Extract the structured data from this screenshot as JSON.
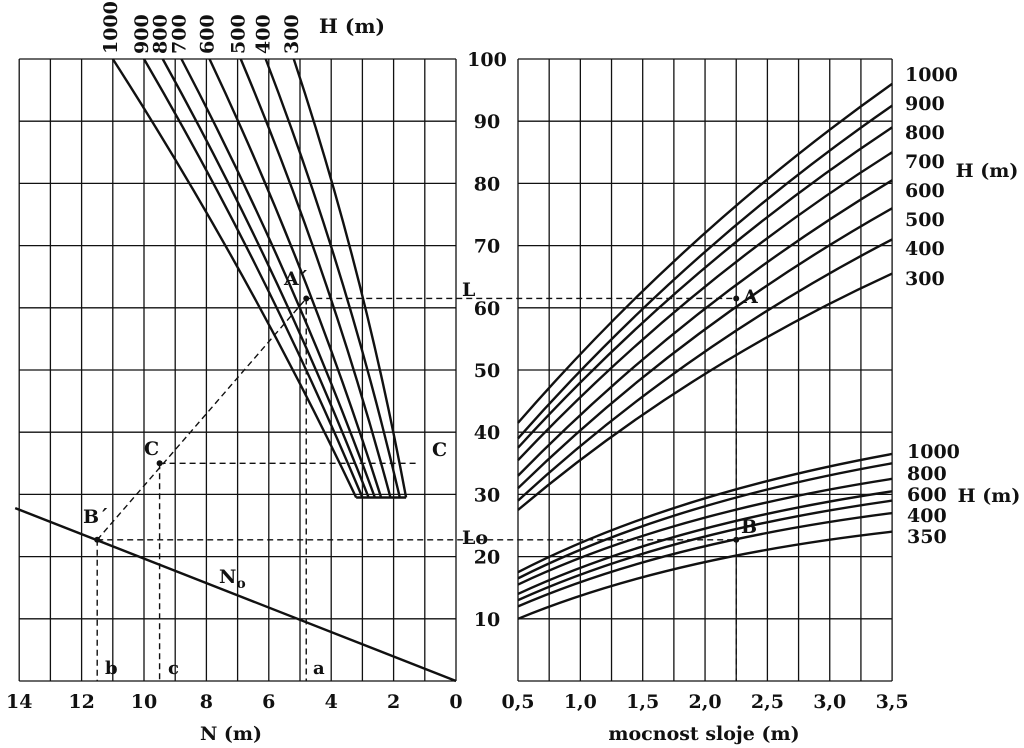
{
  "chart_data": [
    {
      "type": "line",
      "panel": "left",
      "xlabel": "N (m)",
      "x_ticks": [
        "14",
        "12",
        "10",
        "8",
        "6",
        "4",
        "2",
        "0"
      ],
      "xlim": [
        14,
        0
      ],
      "y_ticks": [
        "100",
        "90",
        "80",
        "70",
        "60",
        "50",
        "40",
        "30",
        "20",
        "10"
      ],
      "ylim": [
        0,
        100
      ],
      "top_labels": [
        "1000",
        "900",
        "800",
        "700",
        "600",
        "500",
        "400",
        "300"
      ],
      "top_axis_label": "H (m)",
      "series": [
        {
          "name": "1000",
          "x_top": 11.0,
          "x_bottom": 3.2
        },
        {
          "name": "900",
          "x_top": 10.0,
          "x_bottom": 3.0
        },
        {
          "name": "800",
          "x_top": 9.4,
          "x_bottom": 2.8
        },
        {
          "name": "700",
          "x_top": 8.8,
          "x_bottom": 2.6
        },
        {
          "name": "600",
          "x_top": 7.9,
          "x_bottom": 2.4
        },
        {
          "name": "500",
          "x_top": 6.9,
          "x_bottom": 2.1
        },
        {
          "name": "400",
          "x_top": 6.1,
          "x_bottom": 1.8
        },
        {
          "name": "300",
          "x_top": 5.2,
          "x_bottom": 1.6
        }
      ],
      "line_No": {
        "name": "No",
        "points": [
          [
            14,
            27.8
          ],
          [
            0,
            0
          ]
        ]
      },
      "annotations": {
        "A_prime": {
          "label": "A´",
          "x": 4.8,
          "y": 61.5
        },
        "B_prime": {
          "label": "B´",
          "x": 11.5,
          "y": 22.7
        },
        "C_prime": {
          "label": "C",
          "x": 9.5,
          "y": 35
        },
        "C_right": "C",
        "L": "L",
        "Lo": "Lo",
        "a": "a",
        "b": "b",
        "c": "c",
        "No_label": "N",
        "No_sub": "o"
      }
    },
    {
      "type": "line",
      "panel": "right",
      "xlabel": "mocnost sloje (m)",
      "x_ticks": [
        "0,5",
        "1,0",
        "1,5",
        "2,0",
        "2,5",
        "3,0",
        "3,5"
      ],
      "xlim": [
        0.5,
        3.5
      ],
      "ylim": [
        0,
        100
      ],
      "upper_family_label": "H (m)",
      "upper_series": [
        {
          "name": "1000",
          "y_start": 41.5,
          "y_end": 96
        },
        {
          "name": "900",
          "y_start": 39,
          "y_end": 92.5
        },
        {
          "name": "800",
          "y_start": 37.5,
          "y_end": 89
        },
        {
          "name": "700",
          "y_start": 35.5,
          "y_end": 85
        },
        {
          "name": "600",
          "y_start": 33,
          "y_end": 80.5
        },
        {
          "name": "500",
          "y_start": 31,
          "y_end": 76
        },
        {
          "name": "400",
          "y_start": 29,
          "y_end": 71
        },
        {
          "name": "300",
          "y_start": 27.5,
          "y_end": 65.5
        }
      ],
      "upper_labels": [
        "1000",
        "900",
        "800",
        "700",
        "600",
        "500",
        "400",
        "300"
      ],
      "lower_family_label": "H (m)",
      "lower_series": [
        {
          "name": "1000",
          "y_start": 17.5,
          "y_end": 36.5
        },
        {
          "name": "800",
          "y_start": 16.5,
          "y_end": 35
        },
        {
          "name": "600",
          "y_start": 15.5,
          "y_end": 32.5
        },
        {
          "name": "",
          "y_start": 14,
          "y_end": 30.5
        },
        {
          "name": "400",
          "y_start": 13,
          "y_end": 29
        },
        {
          "name": "",
          "y_start": 12,
          "y_end": 27
        },
        {
          "name": "350",
          "y_start": 10,
          "y_end": 24
        }
      ],
      "lower_labels": [
        "1000",
        "800",
        "600",
        "400",
        "350"
      ],
      "annotations": {
        "A": {
          "label": "A",
          "x": 2.25,
          "y": 61.5
        },
        "B": {
          "label": "B",
          "x": 2.25,
          "y": 22.7
        }
      }
    }
  ]
}
